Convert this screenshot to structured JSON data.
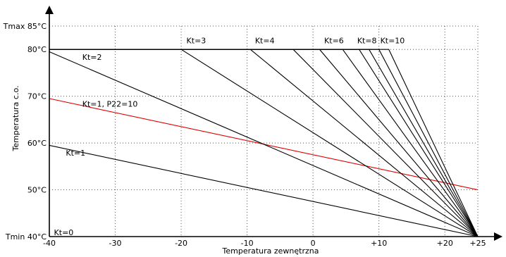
{
  "chart_data": {
    "type": "line",
    "xlabel": "Temperatura zewnętrzna",
    "ylabel": "Temperatura c.o.",
    "xlim": [
      -40,
      25
    ],
    "ylim": [
      40,
      85
    ],
    "x_ticks": [
      {
        "value": -40,
        "label": "-40"
      },
      {
        "value": -30,
        "label": "-30"
      },
      {
        "value": -20,
        "label": "-20"
      },
      {
        "value": -10,
        "label": "-10"
      },
      {
        "value": 0,
        "label": "0"
      },
      {
        "value": 10,
        "label": "+10"
      },
      {
        "value": 20,
        "label": "+20"
      },
      {
        "value": 25,
        "label": "+25"
      }
    ],
    "y_ticks": [
      {
        "value": 40,
        "label": "Tmin 40°C"
      },
      {
        "value": 50,
        "label": "50°C"
      },
      {
        "value": 60,
        "label": "60°C"
      },
      {
        "value": 70,
        "label": "70°C"
      },
      {
        "value": 80,
        "label": "80°C"
      },
      {
        "value": 85,
        "label": "Tmax 85°C"
      }
    ],
    "grid": true,
    "series": [
      {
        "name": "Kt=0",
        "color": "#000000",
        "x": [
          -40,
          25
        ],
        "y": [
          40,
          40
        ]
      },
      {
        "name": "Kt=1",
        "color": "#000000",
        "x": [
          -40,
          25
        ],
        "y": [
          59.5,
          40
        ]
      },
      {
        "name": "Kt=1, P22=10",
        "color": "#e00000",
        "x": [
          -40,
          25
        ],
        "y": [
          69.5,
          50
        ]
      },
      {
        "name": "Kt=2",
        "color": "#000000",
        "x": [
          -40,
          25
        ],
        "y": [
          79.5,
          40
        ]
      },
      {
        "name": "Kt=3",
        "color": "#000000",
        "x": [
          -40,
          -20,
          25
        ],
        "y": [
          80,
          80,
          40
        ]
      },
      {
        "name": "",
        "color": "#000000",
        "x": [
          -40,
          -9.5,
          25
        ],
        "y": [
          80,
          80,
          40
        ]
      },
      {
        "name": "Kt=4",
        "color": "#000000",
        "x": [
          -40,
          -3,
          25
        ],
        "y": [
          80,
          80,
          40
        ]
      },
      {
        "name": "",
        "color": "#000000",
        "x": [
          -40,
          1,
          25
        ],
        "y": [
          80,
          80,
          40
        ]
      },
      {
        "name": "Kt=6",
        "color": "#000000",
        "x": [
          -40,
          4.5,
          25
        ],
        "y": [
          80,
          80,
          40
        ]
      },
      {
        "name": "",
        "color": "#000000",
        "x": [
          -40,
          7,
          25
        ],
        "y": [
          80,
          80,
          40
        ]
      },
      {
        "name": "Kt=8",
        "color": "#000000",
        "x": [
          -40,
          8.5,
          25
        ],
        "y": [
          80,
          80,
          40
        ]
      },
      {
        "name": "",
        "color": "#000000",
        "x": [
          -40,
          10,
          25
        ],
        "y": [
          80,
          80,
          40
        ]
      },
      {
        "name": "Kt=10",
        "color": "#000000",
        "x": [
          -40,
          11.5,
          25
        ],
        "y": [
          80,
          80,
          40
        ]
      }
    ],
    "annotations": [
      {
        "text": "Kt=0",
        "x": -39.3,
        "y": 40
      },
      {
        "text": "Kt=1",
        "x": -37.5,
        "y": 57
      },
      {
        "text": "Kt=1, P22=10",
        "x": -35,
        "y": 67.5
      },
      {
        "text": "Kt=2",
        "x": -35,
        "y": 77.5
      },
      {
        "text": "Kt=3",
        "x": -19.2,
        "y": 81
      },
      {
        "text": "Kt=4",
        "x": -8.8,
        "y": 81
      },
      {
        "text": "Kt=6",
        "x": 1.7,
        "y": 81
      },
      {
        "text": "Kt=8",
        "x": 6.7,
        "y": 81
      },
      {
        "text": "Kt=10",
        "x": 10.2,
        "y": 81
      }
    ]
  }
}
